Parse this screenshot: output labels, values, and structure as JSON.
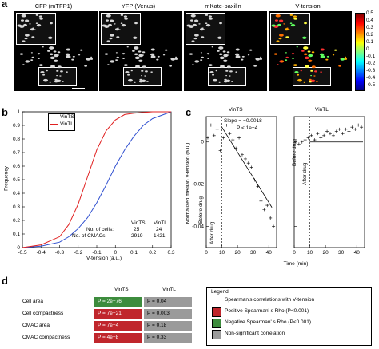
{
  "panel_a": {
    "label": "a",
    "titles": [
      "CFP (mTFP1)",
      "YFP (Venus)",
      "mKate-paxilin",
      "V-tension"
    ],
    "colorbar_ticks": [
      "0.5",
      "0.4",
      "0.3",
      "0.2",
      "0.1",
      "0",
      "-0.1",
      "-0.2",
      "-0.3",
      "-0.4",
      "-0.5"
    ],
    "colors": {
      "colorbar": [
        "#7f0000",
        "#ff0000",
        "#ff8000",
        "#ffff00",
        "#80ff80",
        "#00ffff",
        "#0080ff",
        "#0000ff",
        "#00007f"
      ]
    }
  },
  "panel_b": {
    "label": "b",
    "xlabel": "V-tension (a.u.)",
    "ylabel": "Frequency",
    "legend": [
      "VinTS",
      "VinTL"
    ],
    "table": {
      "headers": [
        "",
        "VinTS",
        "VinTL"
      ],
      "rows": [
        [
          "No. of cells:",
          "25",
          "24"
        ],
        [
          "No. of CMACs:",
          "2919",
          "1421"
        ]
      ]
    },
    "chart_data": {
      "type": "line",
      "xlim": [
        -0.5,
        0.3
      ],
      "ylim": [
        0,
        1
      ],
      "xticks": [
        "-0.5",
        "-0.4",
        "-0.3",
        "-0.2",
        "-0.1",
        "0",
        "0.1",
        "0.2",
        "0.3"
      ],
      "yticks": [
        "0",
        "0.1",
        "0.2",
        "0.3",
        "0.4",
        "0.5",
        "0.6",
        "0.7",
        "0.8",
        "0.9",
        "1"
      ],
      "series": [
        {
          "name": "VinTS",
          "color": "#3050d0",
          "x": [
            -0.5,
            -0.4,
            -0.3,
            -0.25,
            -0.2,
            -0.15,
            -0.1,
            -0.05,
            0,
            0.05,
            0.1,
            0.15,
            0.2,
            0.3
          ],
          "y": [
            0.0,
            0.01,
            0.04,
            0.08,
            0.14,
            0.22,
            0.33,
            0.46,
            0.6,
            0.72,
            0.82,
            0.9,
            0.95,
            1.0
          ]
        },
        {
          "name": "VinTL",
          "color": "#e02020",
          "x": [
            -0.5,
            -0.4,
            -0.3,
            -0.25,
            -0.2,
            -0.15,
            -0.1,
            -0.05,
            0,
            0.05,
            0.1,
            0.2,
            0.3
          ],
          "y": [
            0.0,
            0.02,
            0.08,
            0.17,
            0.32,
            0.52,
            0.72,
            0.86,
            0.94,
            0.98,
            0.99,
            1.0,
            1.0
          ]
        }
      ]
    }
  },
  "panel_c": {
    "label": "c",
    "ylabel": "Normalized median V-tension (a.u.)",
    "xlabel": "Time (min)",
    "left_title": "VinTS",
    "right_title": "VinTL",
    "annotation": [
      "Slope = −0.0018",
      "P < 1e−4"
    ],
    "before_label": "Before drug",
    "after_label": "After drug",
    "chart_data": [
      {
        "type": "scatter",
        "title": "VinTS",
        "xlim": [
          0,
          45
        ],
        "ylim": [
          -0.05,
          0.012
        ],
        "xticks": [
          "0",
          "10",
          "20",
          "30",
          "40"
        ],
        "yticks": [
          "0",
          "-0.02",
          "-0.04"
        ],
        "x": [
          1,
          3,
          5,
          7,
          9,
          11,
          13,
          15,
          17,
          19,
          21,
          23,
          25,
          27,
          29,
          31,
          33,
          35,
          37,
          39,
          41,
          43
        ],
        "y": [
          0.002,
          0.008,
          0.003,
          0.006,
          -0.004,
          0.002,
          0.008,
          0.004,
          0.001,
          -0.003,
          0.002,
          -0.006,
          -0.008,
          -0.01,
          -0.012,
          -0.018,
          -0.021,
          -0.028,
          -0.032,
          -0.03,
          -0.036,
          -0.04
        ],
        "fit": {
          "x": [
            10,
            42
          ],
          "y": [
            0.007,
            -0.031
          ]
        }
      },
      {
        "type": "scatter",
        "title": "VinTL",
        "xlim": [
          0,
          45
        ],
        "ylim": [
          -0.05,
          0.012
        ],
        "xticks": [
          "0",
          "10",
          "20",
          "30",
          "40"
        ],
        "x": [
          1,
          3,
          5,
          7,
          9,
          11,
          13,
          15,
          17,
          19,
          21,
          23,
          25,
          27,
          29,
          31,
          33,
          35,
          37,
          39,
          41,
          43
        ],
        "y": [
          0.0,
          -0.001,
          0.0,
          0.001,
          0.002,
          0.003,
          0.001,
          0.004,
          0.002,
          0.003,
          0.005,
          0.004,
          0.003,
          0.005,
          0.006,
          0.004,
          0.006,
          0.005,
          0.007,
          0.006,
          0.008,
          0.007
        ],
        "fit": {
          "x": [
            10,
            44
          ],
          "y": [
            0.0,
            0.0
          ]
        }
      }
    ]
  },
  "panel_d": {
    "label": "d",
    "col_headers": [
      "VinTS",
      "VinTL"
    ],
    "rows": [
      {
        "label": "Cell area",
        "vints": "P = 2e−76",
        "vintl": "P = 0.04",
        "vints_color": "#3d8c3d",
        "vintl_color": "#9a9a9a"
      },
      {
        "label": "Cell compactness",
        "vints": "P = 7e−21",
        "vintl": "P = 0.003",
        "vints_color": "#c0262c",
        "vintl_color": "#9a9a9a"
      },
      {
        "label": "CMAC area",
        "vints": "P = 7e−4",
        "vintl": "P = 0.18",
        "vints_color": "#c0262c",
        "vintl_color": "#9a9a9a"
      },
      {
        "label": "CMAC compactness",
        "vints": "P = 4e−8",
        "vintl": "P = 0.33",
        "vints_color": "#c0262c",
        "vintl_color": "#9a9a9a"
      }
    ],
    "legend": {
      "title": "Legend:",
      "subtitle": "Spearman's correlations with V-tension",
      "items": [
        {
          "label": "Positive Spearman' s Rho (P<0.001)",
          "color": "#c0262c"
        },
        {
          "label": "Negative Spearman' s Rho (P<0.001)",
          "color": "#3d8c3d"
        },
        {
          "label": "Non-significant correlation",
          "color": "#9a9a9a"
        }
      ]
    }
  }
}
